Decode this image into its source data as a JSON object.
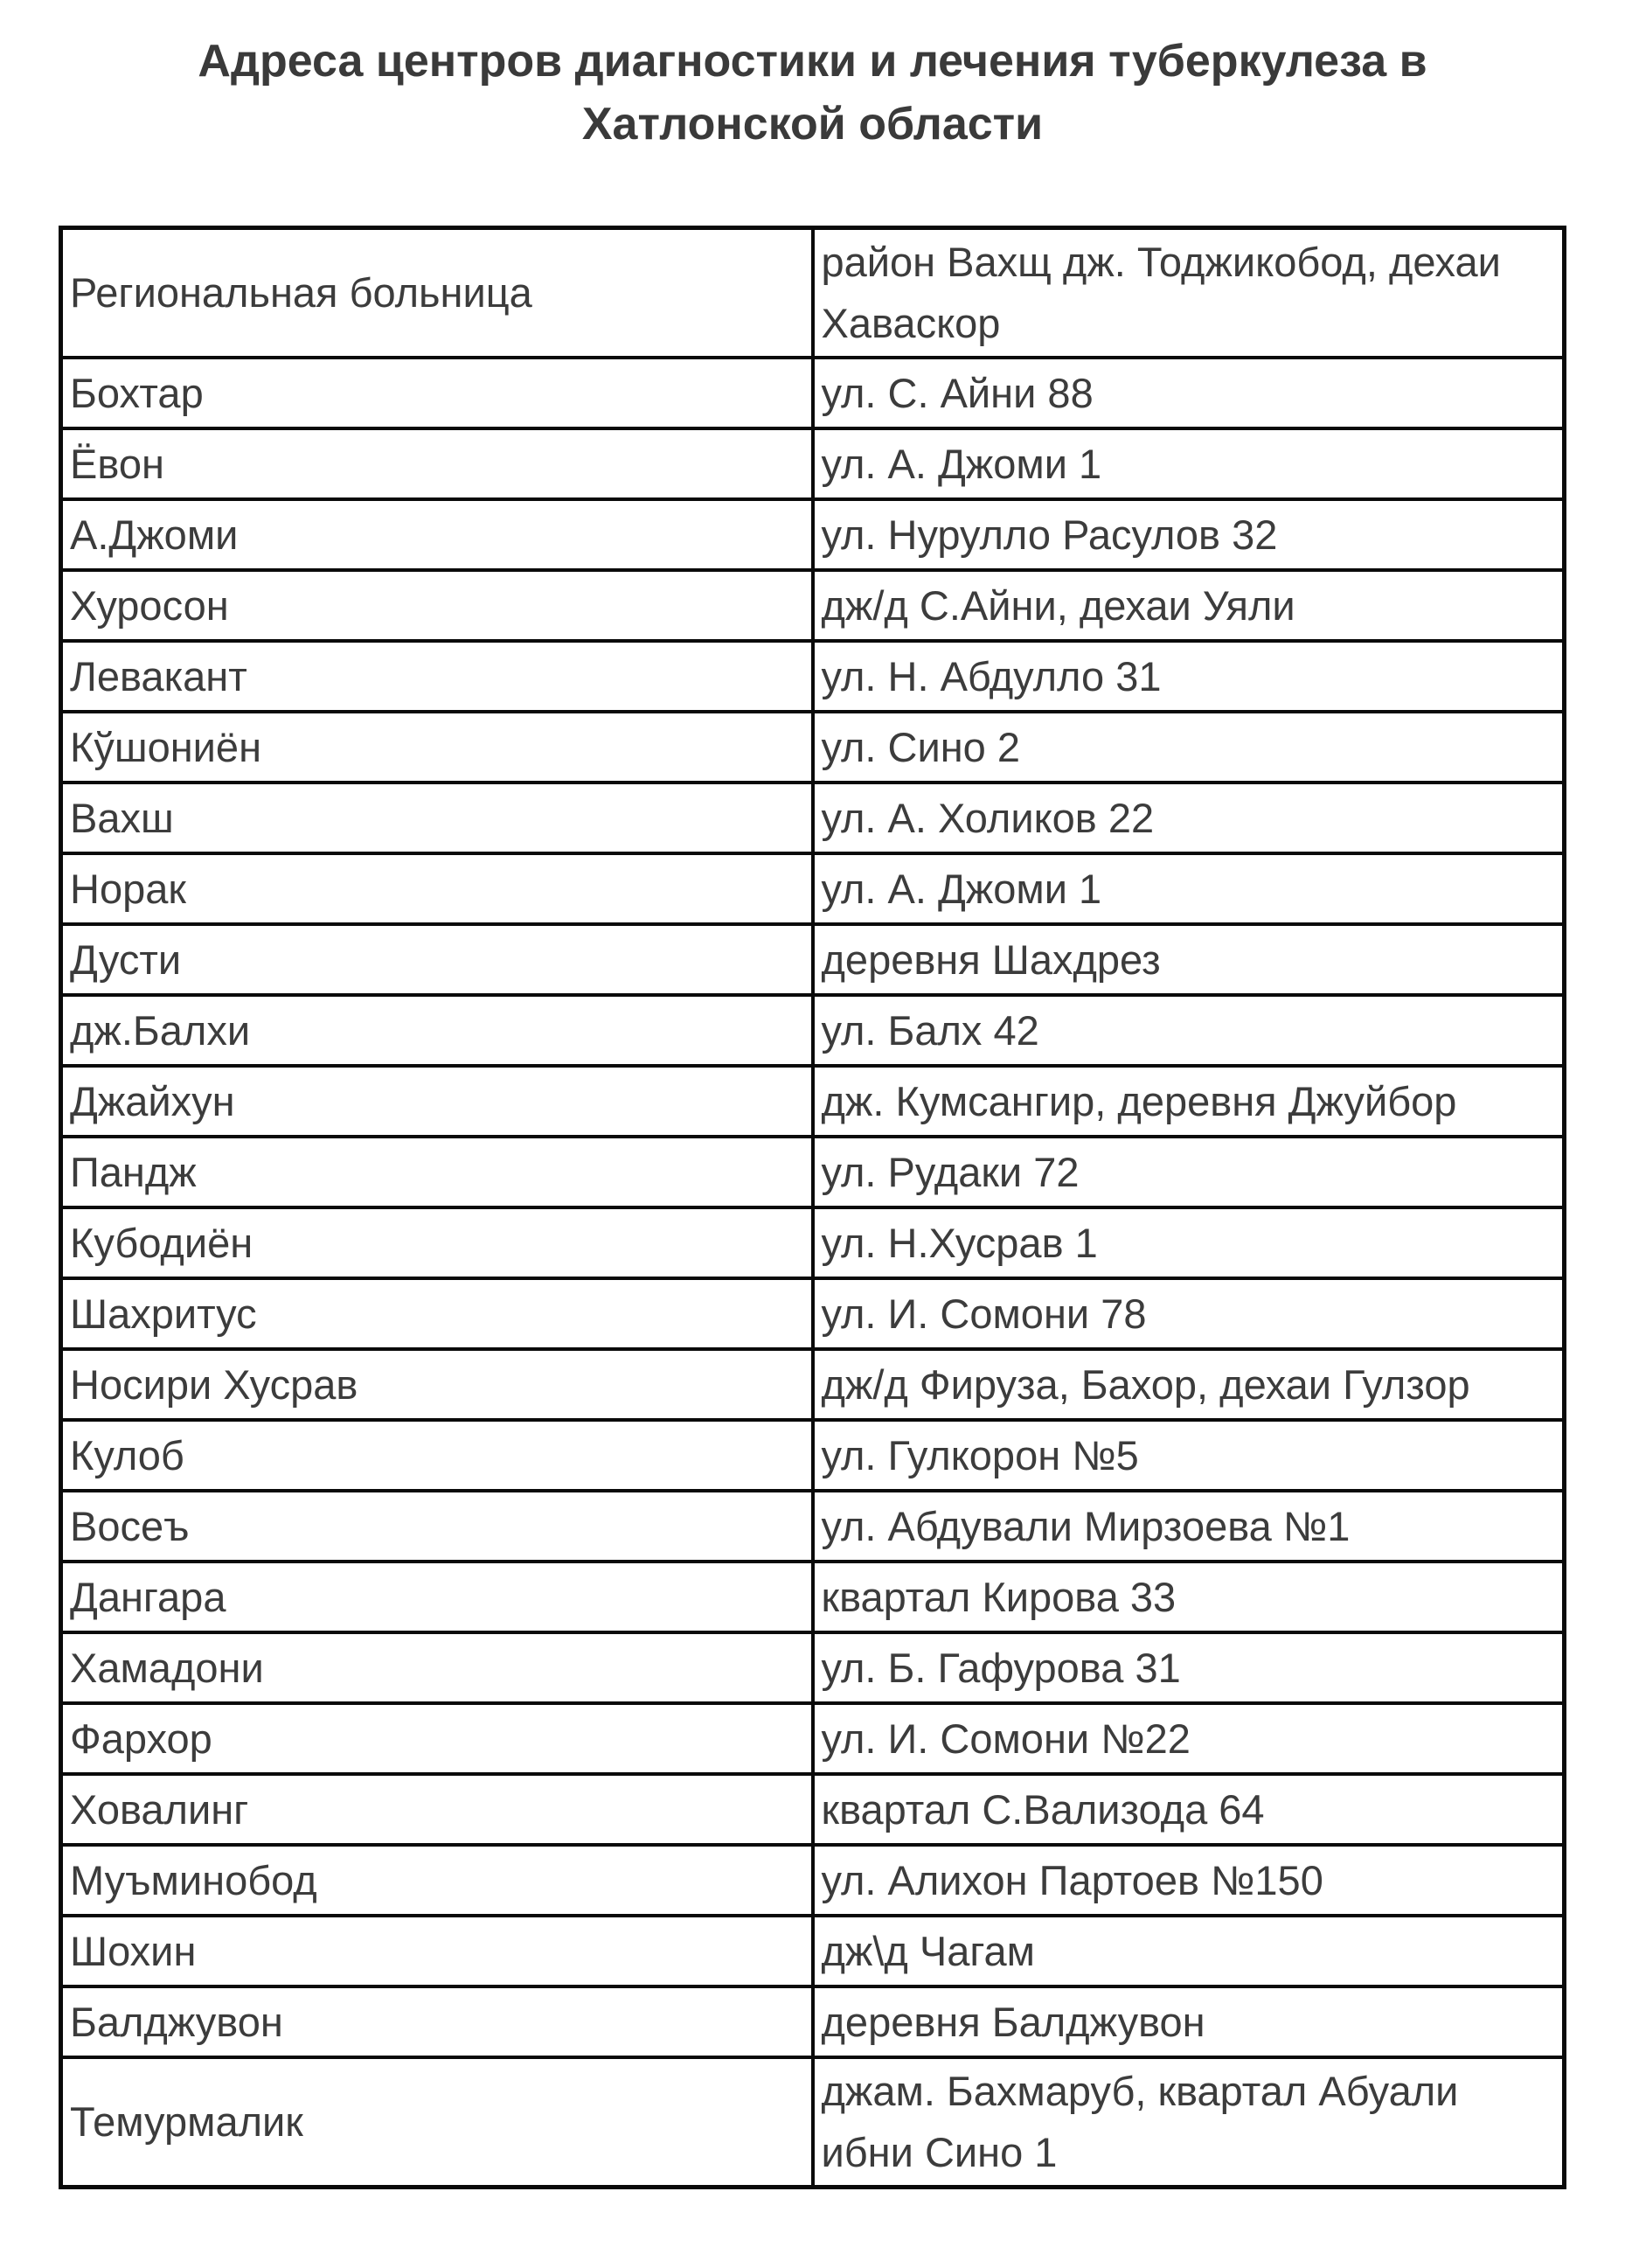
{
  "title": "Адреса центров диагностики и лечения туберкулеза в Хатлонской области",
  "colors": {
    "text": "#3c3c3c",
    "border": "#0a0a0a",
    "background": "#ffffff"
  },
  "table": {
    "rows": [
      {
        "name": "Региональная больница",
        "address": "район Вахщ дж. Тоджикобод, дехаи Хаваскор"
      },
      {
        "name": "Бохтар",
        "address": "ул. С. Айни 88"
      },
      {
        "name": "Ёвон",
        "address": "ул. А. Джоми 1"
      },
      {
        "name": "А.Джоми",
        "address": "ул. Нурулло Расулов 32"
      },
      {
        "name": "Хуросон",
        "address": "дж/д С.Айни, дехаи Уяли"
      },
      {
        "name": "Левакант",
        "address": "ул. Н. Абдулло 31"
      },
      {
        "name": "Кўшониён",
        "address": "ул. Сино 2"
      },
      {
        "name": "Вахш",
        "address": "ул. А. Холиков 22"
      },
      {
        "name": "Норак",
        "address": "ул. А. Джоми 1"
      },
      {
        "name": "Дусти",
        "address": "деревня Шахдрез"
      },
      {
        "name": "дж.Балхи",
        "address": "ул. Балх 42"
      },
      {
        "name": "Джайхун",
        "address": "дж. Кумсангир, деревня Джуйбор"
      },
      {
        "name": "Пандж",
        "address": "ул. Рудаки 72"
      },
      {
        "name": "Кубодиён",
        "address": "ул. Н.Хусрав 1"
      },
      {
        "name": "Шахритус",
        "address": "ул. И. Сомони 78"
      },
      {
        "name": "Носири Хусрав",
        "address": "дж/д Фируза, Бахор, дехаи Гулзор"
      },
      {
        "name": "Кулоб",
        "address": "ул. Гулкорон №5"
      },
      {
        "name": "Восеъ",
        "address": "ул. Абдували Мирзоева №1"
      },
      {
        "name": "Дангара",
        "address": "квартал Кирова 33"
      },
      {
        "name": "Хамадони",
        "address": "ул. Б. Гафурова 31"
      },
      {
        "name": "Фархор",
        "address": "ул. И. Сомони №22"
      },
      {
        "name": "Ховалинг",
        "address": "квартал С.Вализода 64"
      },
      {
        "name": "Муъминобод",
        "address": "ул. Алихон Партоев №150"
      },
      {
        "name": "Шохин",
        "address": "дж\\д Чагам"
      },
      {
        "name": "Балджувон",
        "address": "деревня Балджувон"
      },
      {
        "name": "Темурмалик",
        "address": "джам. Бахмаруб, квартал Абуали ибни Сино 1"
      }
    ]
  }
}
